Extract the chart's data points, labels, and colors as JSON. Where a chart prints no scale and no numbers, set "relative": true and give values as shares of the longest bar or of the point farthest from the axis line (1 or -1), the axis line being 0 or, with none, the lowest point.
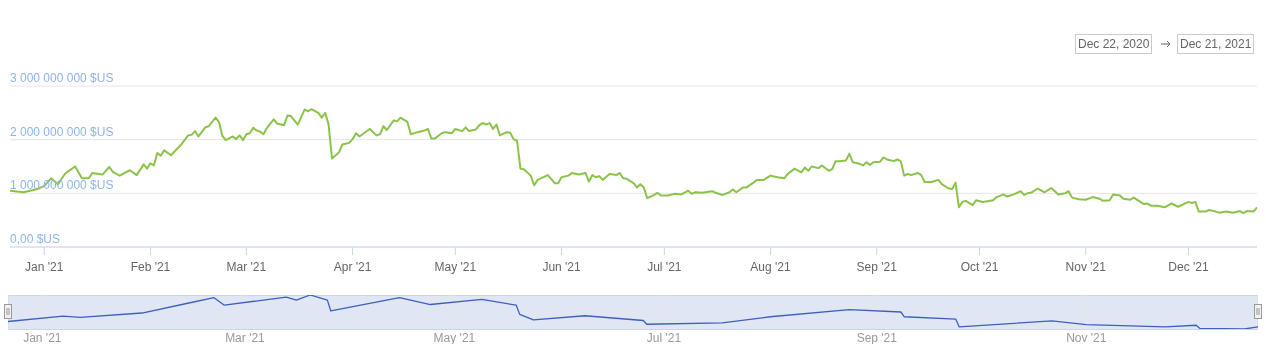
{
  "chart_data": [
    {
      "type": "line",
      "annotations": [
        "Dec 22, 2020",
        "Dec 21, 2021"
      ],
      "x": [
        "2020-12-22",
        "2020-12-26",
        "2020-12-30",
        "2021-01-01",
        "2021-01-03",
        "2021-01-05",
        "2021-01-07",
        "2021-01-08",
        "2021-01-10",
        "2021-01-12",
        "2021-01-14",
        "2021-01-15",
        "2021-01-18",
        "2021-01-20",
        "2021-01-21",
        "2021-01-23",
        "2021-01-26",
        "2021-01-28",
        "2021-01-30",
        "2021-01-31",
        "2021-02-01",
        "2021-02-02",
        "2021-02-03",
        "2021-02-04",
        "2021-02-05",
        "2021-02-07",
        "2021-02-10",
        "2021-02-12",
        "2021-02-13",
        "2021-02-14",
        "2021-02-15",
        "2021-02-17",
        "2021-02-18",
        "2021-02-20",
        "2021-02-21",
        "2021-02-22",
        "2021-02-23",
        "2021-02-25",
        "2021-02-26",
        "2021-02-27",
        "2021-02-28",
        "2021-03-01",
        "2021-03-02",
        "2021-03-03",
        "2021-03-04",
        "2021-03-05",
        "2021-03-06",
        "2021-03-07",
        "2021-03-09",
        "2021-03-10",
        "2021-03-12",
        "2021-03-13",
        "2021-03-14",
        "2021-03-16",
        "2021-03-18",
        "2021-03-19",
        "2021-03-20",
        "2021-03-22",
        "2021-03-23",
        "2021-03-24",
        "2021-03-25",
        "2021-03-26",
        "2021-03-28",
        "2021-03-29",
        "2021-03-31",
        "2021-04-01",
        "2021-04-02",
        "2021-04-03",
        "2021-04-06",
        "2021-04-08",
        "2021-04-09",
        "2021-04-10",
        "2021-04-11",
        "2021-04-13",
        "2021-04-14",
        "2021-04-15",
        "2021-04-17",
        "2021-04-18",
        "2021-04-20",
        "2021-04-22",
        "2021-04-23",
        "2021-04-24",
        "2021-04-25",
        "2021-04-27",
        "2021-04-28",
        "2021-04-30",
        "2021-05-01",
        "2021-05-03",
        "2021-05-04",
        "2021-05-05",
        "2021-05-07",
        "2021-05-08",
        "2021-05-09",
        "2021-05-10",
        "2021-05-11",
        "2021-05-12",
        "2021-05-13",
        "2021-05-14",
        "2021-05-16",
        "2021-05-17",
        "2021-05-18",
        "2021-05-19",
        "2021-05-20",
        "2021-05-21",
        "2021-05-23",
        "2021-05-24",
        "2021-05-25",
        "2021-05-28",
        "2021-05-30",
        "2021-05-31",
        "2021-06-01",
        "2021-06-03",
        "2021-06-04",
        "2021-06-06",
        "2021-06-08",
        "2021-06-09",
        "2021-06-10",
        "2021-06-11",
        "2021-06-12",
        "2021-06-13",
        "2021-06-15",
        "2021-06-17",
        "2021-06-18",
        "2021-06-19",
        "2021-06-20",
        "2021-06-22",
        "2021-06-23",
        "2021-06-24",
        "2021-06-25",
        "2021-06-26",
        "2021-06-27",
        "2021-06-28",
        "2021-06-29",
        "2021-06-30",
        "2021-07-02",
        "2021-07-04",
        "2021-07-06",
        "2021-07-08",
        "2021-07-09",
        "2021-07-10",
        "2021-07-12",
        "2021-07-15",
        "2021-07-16",
        "2021-07-18",
        "2021-07-20",
        "2021-07-21",
        "2021-07-22",
        "2021-07-24",
        "2021-07-25",
        "2021-07-27",
        "2021-07-28",
        "2021-07-30",
        "2021-08-01",
        "2021-08-03",
        "2021-08-05",
        "2021-08-06",
        "2021-08-08",
        "2021-08-10",
        "2021-08-11",
        "2021-08-12",
        "2021-08-13",
        "2021-08-15",
        "2021-08-16",
        "2021-08-18",
        "2021-08-19",
        "2021-08-20",
        "2021-08-21",
        "2021-08-23",
        "2021-08-24",
        "2021-08-25",
        "2021-08-27",
        "2021-08-28",
        "2021-08-29",
        "2021-08-30",
        "2021-08-31",
        "2021-09-02",
        "2021-09-03",
        "2021-09-04",
        "2021-09-06",
        "2021-09-07",
        "2021-09-08",
        "2021-09-09",
        "2021-09-10",
        "2021-09-11",
        "2021-09-13",
        "2021-09-14",
        "2021-09-15",
        "2021-09-17",
        "2021-09-19",
        "2021-09-20",
        "2021-09-22",
        "2021-09-23",
        "2021-09-24",
        "2021-09-25",
        "2021-09-26",
        "2021-09-27",
        "2021-09-29",
        "2021-09-30",
        "2021-10-02",
        "2021-10-05",
        "2021-10-06",
        "2021-10-08",
        "2021-10-09",
        "2021-10-11",
        "2021-10-13",
        "2021-10-14",
        "2021-10-15",
        "2021-10-16",
        "2021-10-18",
        "2021-10-20",
        "2021-10-22",
        "2021-10-24",
        "2021-10-26",
        "2021-10-27",
        "2021-10-28",
        "2021-10-30",
        "2021-11-01",
        "2021-11-03",
        "2021-11-05",
        "2021-11-06",
        "2021-11-08",
        "2021-11-09",
        "2021-11-11",
        "2021-11-12",
        "2021-11-14",
        "2021-11-15",
        "2021-11-18",
        "2021-11-19",
        "2021-11-20",
        "2021-11-22",
        "2021-11-24",
        "2021-11-26",
        "2021-11-28",
        "2021-12-01",
        "2021-12-02",
        "2021-12-03",
        "2021-12-04",
        "2021-12-06",
        "2021-12-07",
        "2021-12-09",
        "2021-12-10",
        "2021-12-12",
        "2021-12-14",
        "2021-12-16",
        "2021-12-17",
        "2021-12-18",
        "2021-12-20",
        "2021-12-21"
      ],
      "series": [
        {
          "color": "#8bc34a",
          "values": [
            1050000000,
            1020000000,
            1080000000,
            1140000000,
            1280000000,
            1170000000,
            1360000000,
            1410000000,
            1500000000,
            1280000000,
            1280000000,
            1380000000,
            1350000000,
            1490000000,
            1400000000,
            1330000000,
            1430000000,
            1340000000,
            1540000000,
            1460000000,
            1560000000,
            1520000000,
            1750000000,
            1700000000,
            1800000000,
            1710000000,
            1910000000,
            2080000000,
            2090000000,
            2160000000,
            2060000000,
            2230000000,
            2250000000,
            2410000000,
            2330000000,
            2070000000,
            1990000000,
            2060000000,
            2010000000,
            2080000000,
            1990000000,
            2100000000,
            2120000000,
            2220000000,
            2170000000,
            2150000000,
            2100000000,
            2220000000,
            2380000000,
            2300000000,
            2270000000,
            2450000000,
            2440000000,
            2280000000,
            2560000000,
            2530000000,
            2570000000,
            2500000000,
            2410000000,
            2500000000,
            2280000000,
            1650000000,
            1760000000,
            1910000000,
            1940000000,
            2010000000,
            2120000000,
            2060000000,
            2200000000,
            2080000000,
            2100000000,
            2250000000,
            2180000000,
            2360000000,
            2340000000,
            2410000000,
            2330000000,
            2100000000,
            2140000000,
            2170000000,
            2200000000,
            2020000000,
            2020000000,
            2120000000,
            2140000000,
            2120000000,
            2200000000,
            2160000000,
            2230000000,
            2160000000,
            2190000000,
            2270000000,
            2310000000,
            2280000000,
            2310000000,
            2200000000,
            2280000000,
            2080000000,
            2140000000,
            2130000000,
            2010000000,
            1980000000,
            1460000000,
            1450000000,
            1330000000,
            1150000000,
            1250000000,
            1340000000,
            1190000000,
            1190000000,
            1300000000,
            1330000000,
            1380000000,
            1350000000,
            1380000000,
            1220000000,
            1340000000,
            1300000000,
            1320000000,
            1250000000,
            1360000000,
            1340000000,
            1380000000,
            1280000000,
            1270000000,
            1190000000,
            1110000000,
            1170000000,
            1110000000,
            910000000,
            940000000,
            970000000,
            1010000000,
            960000000,
            960000000,
            990000000,
            980000000,
            1050000000,
            990000000,
            1020000000,
            1010000000,
            1040000000,
            1010000000,
            970000000,
            1020000000,
            1070000000,
            1020000000,
            1110000000,
            1110000000,
            1200000000,
            1250000000,
            1250000000,
            1330000000,
            1300000000,
            1280000000,
            1360000000,
            1460000000,
            1390000000,
            1480000000,
            1420000000,
            1500000000,
            1470000000,
            1520000000,
            1420000000,
            1450000000,
            1600000000,
            1600000000,
            1610000000,
            1740000000,
            1580000000,
            1550000000,
            1520000000,
            1580000000,
            1530000000,
            1580000000,
            1590000000,
            1670000000,
            1630000000,
            1600000000,
            1630000000,
            1600000000,
            1330000000,
            1360000000,
            1340000000,
            1380000000,
            1340000000,
            1210000000,
            1210000000,
            1250000000,
            1170000000,
            1090000000,
            1080000000,
            1200000000,
            740000000,
            840000000,
            860000000,
            780000000,
            870000000,
            840000000,
            870000000,
            930000000,
            980000000,
            940000000,
            980000000,
            1040000000,
            970000000,
            1000000000,
            1010000000,
            1090000000,
            1020000000,
            1100000000,
            980000000,
            1000000000,
            1040000000,
            920000000,
            890000000,
            880000000,
            930000000,
            900000000,
            860000000,
            870000000,
            980000000,
            960000000,
            900000000,
            880000000,
            920000000,
            800000000,
            810000000,
            770000000,
            770000000,
            740000000,
            810000000,
            750000000,
            840000000,
            820000000,
            840000000,
            660000000,
            660000000,
            690000000,
            660000000,
            640000000,
            660000000,
            640000000,
            670000000,
            630000000,
            670000000,
            660000000,
            740000000
          ]
        }
      ],
      "xlim": [
        "2020-12-22",
        "2021-12-21"
      ],
      "xticks": [
        {
          "value": "2021-01-01",
          "label": "Jan '21"
        },
        {
          "value": "2021-02-01",
          "label": "Feb '21"
        },
        {
          "value": "2021-03-01",
          "label": "Mar '21"
        },
        {
          "value": "2021-04-01",
          "label": "Apr '21"
        },
        {
          "value": "2021-05-01",
          "label": "May '21"
        },
        {
          "value": "2021-06-01",
          "label": "Jun '21"
        },
        {
          "value": "2021-07-01",
          "label": "Jul '21"
        },
        {
          "value": "2021-08-01",
          "label": "Aug '21"
        },
        {
          "value": "2021-09-01",
          "label": "Sep '21"
        },
        {
          "value": "2021-10-01",
          "label": "Oct '21"
        },
        {
          "value": "2021-11-01",
          "label": "Nov '21"
        },
        {
          "value": "2021-12-01",
          "label": "Dec '21"
        }
      ],
      "ylim": [
        0,
        3000000000
      ],
      "yticks": [
        {
          "value": 0,
          "label": "0,00 $US"
        },
        {
          "value": 1000000000,
          "label": "1 000 000 000 $US"
        },
        {
          "value": 2000000000,
          "label": "2 000 000 000 $US"
        },
        {
          "value": 3000000000,
          "label": "3 000 000 000 $US"
        }
      ],
      "grid": "y",
      "marker": "none",
      "line_style": "solid"
    },
    {
      "type": "line",
      "relative": true,
      "tick_labels": "x",
      "grid": "x",
      "marker": "none",
      "line_style": "solid",
      "x": [
        "2020-12-22",
        "2021-01-07",
        "2021-01-12",
        "2021-01-30",
        "2021-02-12",
        "2021-02-20",
        "2021-02-23",
        "2021-03-13",
        "2021-03-16",
        "2021-03-20",
        "2021-03-25",
        "2021-03-26",
        "2021-04-15",
        "2021-04-24",
        "2021-05-09",
        "2021-05-19",
        "2021-05-20",
        "2021-05-24",
        "2021-06-08",
        "2021-06-25",
        "2021-06-26",
        "2021-07-18",
        "2021-08-01",
        "2021-08-24",
        "2021-09-08",
        "2021-09-09",
        "2021-09-24",
        "2021-09-25",
        "2021-10-22",
        "2021-11-01",
        "2021-11-24",
        "2021-12-03",
        "2021-12-04",
        "2021-12-17",
        "2021-12-21"
      ],
      "series": [
        {
          "color": "#3d5fbf",
          "values": [
            0.22,
            0.38,
            0.34,
            0.47,
            0.75,
            0.92,
            0.7,
            0.94,
            0.85,
            1,
            0.85,
            0.53,
            0.92,
            0.72,
            0.87,
            0.7,
            0.43,
            0.27,
            0.39,
            0.25,
            0.14,
            0.18,
            0.36,
            0.57,
            0.5,
            0.36,
            0.29,
            0.06,
            0.24,
            0.13,
            0.06,
            0.11,
            0.02,
            0,
            0.06
          ]
        }
      ],
      "xlim": [
        "2020-12-22",
        "2021-12-21"
      ],
      "xticks": [
        {
          "value": "2021-01-01",
          "label": "Jan '21"
        },
        {
          "value": "2021-03-01",
          "label": "Mar '21"
        },
        {
          "value": "2021-05-01",
          "label": "May '21"
        },
        {
          "value": "2021-07-01",
          "label": "Jul '21"
        },
        {
          "value": "2021-09-01",
          "label": "Sep '21"
        },
        {
          "value": "2021-11-01",
          "label": "Nov '21"
        }
      ]
    }
  ]
}
